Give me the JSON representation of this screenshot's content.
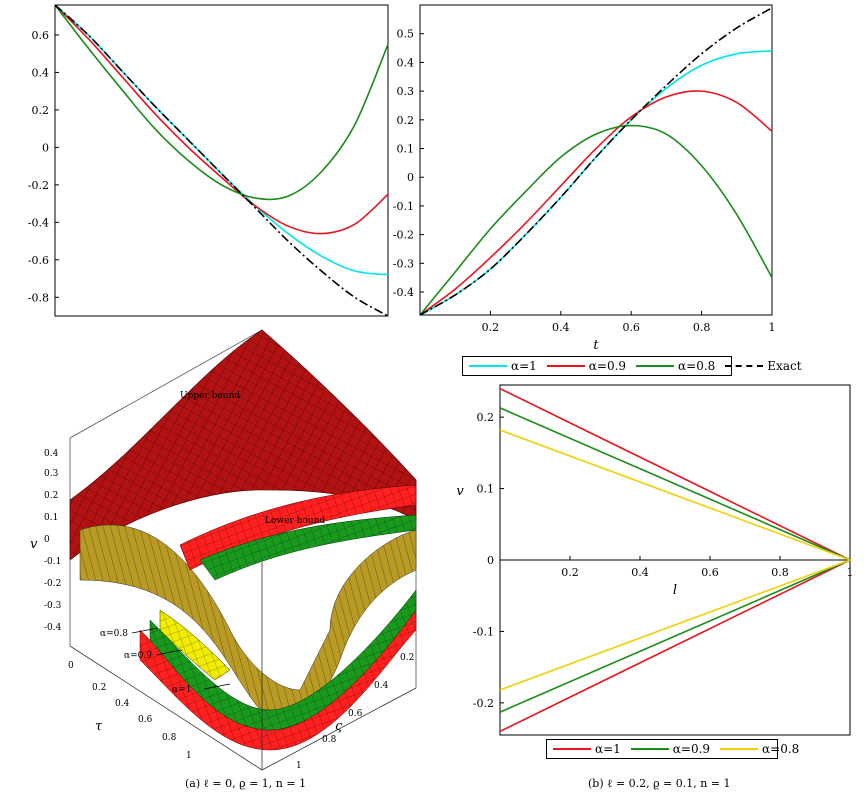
{
  "chart_data": [
    {
      "type": "line",
      "panel": "top-left",
      "xlabel": "",
      "ylabel": "",
      "xlim": [
        0,
        1
      ],
      "ylim": [
        -0.9,
        0.76
      ],
      "yticks": [
        "0.6",
        "0.4",
        "0.2",
        "0",
        "-0.2",
        "-0.4",
        "-0.6",
        "-0.8"
      ],
      "ytick_values": [
        0.6,
        0.4,
        0.2,
        0,
        -0.2,
        -0.4,
        -0.6,
        -0.8
      ],
      "x": [
        0,
        0.1,
        0.2,
        0.3,
        0.4,
        0.5,
        0.6,
        0.7,
        0.8,
        0.9,
        1.0
      ],
      "series": [
        {
          "color": "#00e5ee",
          "dash": "solid",
          "values": [
            0.76,
            0.6,
            0.41,
            0.22,
            0.04,
            -0.14,
            -0.31,
            -0.46,
            -0.58,
            -0.66,
            -0.68
          ]
        },
        {
          "color": "#e8141e",
          "dash": "solid",
          "values": [
            0.76,
            0.58,
            0.38,
            0.18,
            0.0,
            -0.16,
            -0.31,
            -0.42,
            -0.46,
            -0.41,
            -0.25
          ]
        },
        {
          "color": "#1a8c1a",
          "dash": "solid",
          "values": [
            0.76,
            0.53,
            0.31,
            0.1,
            -0.07,
            -0.2,
            -0.27,
            -0.26,
            -0.13,
            0.12,
            0.55
          ]
        },
        {
          "color": "#000000",
          "dash": "dashdot",
          "values": [
            0.76,
            0.6,
            0.41,
            0.22,
            0.04,
            -0.14,
            -0.32,
            -0.5,
            -0.66,
            -0.8,
            -0.9
          ]
        }
      ]
    },
    {
      "type": "line",
      "panel": "top-right",
      "xlabel": "t",
      "ylabel": "",
      "xlim": [
        0,
        1
      ],
      "ylim": [
        -0.48,
        0.6
      ],
      "xticks": [
        "0.2",
        "0.4",
        "0.6",
        "0.8",
        "1"
      ],
      "xtick_values": [
        0.2,
        0.4,
        0.6,
        0.8,
        1.0
      ],
      "yticks": [
        "0.5",
        "0.4",
        "0.3",
        "0.2",
        "0.1",
        "0",
        "-0.1",
        "-0.2",
        "-0.3",
        "-0.4"
      ],
      "ytick_values": [
        0.5,
        0.4,
        0.3,
        0.2,
        0.1,
        0,
        -0.1,
        -0.2,
        -0.3,
        -0.4
      ],
      "x": [
        0,
        0.1,
        0.2,
        0.3,
        0.4,
        0.5,
        0.6,
        0.7,
        0.8,
        0.9,
        1.0
      ],
      "series": [
        {
          "color": "#00e5ee",
          "dash": "solid",
          "values": [
            -0.48,
            -0.41,
            -0.32,
            -0.2,
            -0.07,
            0.07,
            0.2,
            0.31,
            0.39,
            0.43,
            0.44
          ]
        },
        {
          "color": "#e8141e",
          "dash": "solid",
          "values": [
            -0.48,
            -0.39,
            -0.28,
            -0.16,
            -0.03,
            0.1,
            0.21,
            0.28,
            0.3,
            0.26,
            0.16
          ]
        },
        {
          "color": "#1a8c1a",
          "dash": "solid",
          "values": [
            -0.48,
            -0.33,
            -0.18,
            -0.05,
            0.07,
            0.15,
            0.18,
            0.15,
            0.04,
            -0.13,
            -0.35
          ]
        },
        {
          "color": "#000000",
          "dash": "dashdot",
          "values": [
            -0.48,
            -0.41,
            -0.32,
            -0.2,
            -0.07,
            0.07,
            0.2,
            0.32,
            0.43,
            0.52,
            0.59
          ]
        }
      ],
      "legend": {
        "placement": "bottom",
        "entries": [
          {
            "label": "α=1",
            "color": "#00e5ee",
            "dash": "solid"
          },
          {
            "label": "α=0.9",
            "color": "#e8141e",
            "dash": "solid"
          },
          {
            "label": "α=0.8",
            "color": "#1a8c1a",
            "dash": "solid"
          },
          {
            "label": "Exact",
            "color": "#000000",
            "dash": "dashdot"
          }
        ]
      }
    },
    {
      "type": "surface",
      "panel": "bottom-left",
      "xlabel": "τ",
      "ylabel": "ς",
      "zlabel": "v",
      "zticks": [
        "0.4",
        "0.3",
        "0.2",
        "0.1",
        "0",
        "-0.1",
        "-0.2",
        "-0.3",
        "-0.4"
      ],
      "xticks": [
        "0.2",
        "0.4",
        "0.6",
        "0.8",
        "1"
      ],
      "yticks": [
        "0.2",
        "0.4",
        "0.6",
        "0.8",
        "1"
      ],
      "origin_label": "0",
      "annotations": [
        "Upper bound",
        "Lower bound",
        "α=0.8",
        "α=0.9",
        "α=1"
      ],
      "surface_colors": {
        "bounds": "#cc0000",
        "alpha1": "#ff1e1e",
        "alpha09": "#1a9a1a",
        "alpha08": "#e8e000",
        "side": "#b59a2a"
      }
    },
    {
      "type": "line",
      "panel": "bottom-right",
      "xlabel": "l",
      "ylabel": "v",
      "xlim": [
        0,
        1
      ],
      "ylim": [
        -0.245,
        0.245
      ],
      "xticks": [
        "0.2",
        "0.4",
        "0.6",
        "0.8",
        "1"
      ],
      "xtick_values": [
        0.2,
        0.4,
        0.6,
        0.8,
        1.0
      ],
      "yticks": [
        "0.2",
        "0.1",
        "0",
        "-0.1",
        "-0.2"
      ],
      "ytick_values": [
        0.2,
        0.1,
        0,
        -0.1,
        -0.2
      ],
      "x": [
        0,
        1
      ],
      "series": [
        {
          "color": "#e8141e",
          "dash": "solid",
          "values": [
            0.24,
            0
          ]
        },
        {
          "color": "#1a8c1a",
          "dash": "solid",
          "values": [
            0.213,
            0
          ]
        },
        {
          "color": "#f0d000",
          "dash": "solid",
          "values": [
            0.182,
            0
          ]
        },
        {
          "color": "#e8141e",
          "dash": "solid",
          "values": [
            -0.24,
            0
          ]
        },
        {
          "color": "#1a8c1a",
          "dash": "solid",
          "values": [
            -0.213,
            0
          ]
        },
        {
          "color": "#f0d000",
          "dash": "solid",
          "values": [
            -0.182,
            0
          ]
        }
      ],
      "legend": {
        "placement": "bottom",
        "entries": [
          {
            "label": "α=1",
            "color": "#e8141e",
            "dash": "solid"
          },
          {
            "label": "α=0.9",
            "color": "#1a8c1a",
            "dash": "solid"
          },
          {
            "label": "α=0.8",
            "color": "#f0d000",
            "dash": "solid"
          }
        ]
      }
    }
  ],
  "captions": {
    "a": "(a) ℓ = 0, ϱ = 1, n = 1",
    "b": "(b) ℓ = 0.2, ϱ = 0.1, n = 1"
  }
}
